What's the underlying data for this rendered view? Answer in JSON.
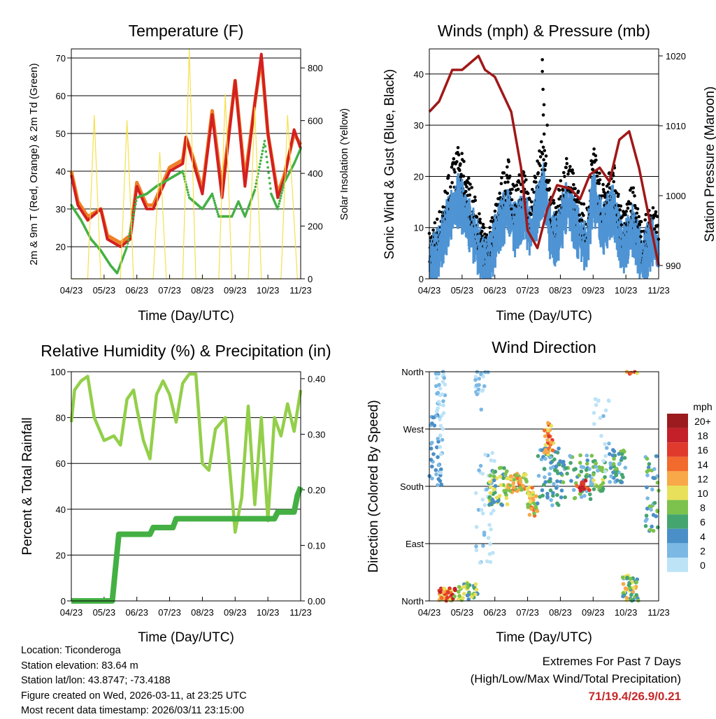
{
  "chart_data": [
    {
      "type": "line",
      "title": "Temperature (F)",
      "xlabel": "Time (Day/UTC)",
      "ylabel": "2m & 9m T (Red, Orange) & 2m Td (Green)",
      "ylabel_right": "Solar Insolation (Yellow)",
      "xticks": [
        "04/23",
        "05/23",
        "06/23",
        "07/23",
        "08/23",
        "09/23",
        "10/23",
        "11/23"
      ],
      "xlim": [
        0,
        7
      ],
      "ylim": [
        11.5,
        72.4
      ],
      "yticks": [
        20,
        30,
        40,
        50,
        60,
        70
      ],
      "ylim_right": [
        0,
        872
      ],
      "yticks_right": [
        0,
        200,
        400,
        600,
        800
      ],
      "series": [
        {
          "name": "9m T",
          "color": "#f07f24",
          "axis": "left",
          "points": [
            [
              0,
              40
            ],
            [
              0.2,
              32
            ],
            [
              0.5,
              28
            ],
            [
              0.9,
              30
            ],
            [
              1.1,
              23
            ],
            [
              1.5,
              21
            ],
            [
              1.8,
              23
            ],
            [
              2.0,
              37
            ],
            [
              2.3,
              31
            ],
            [
              2.5,
              31
            ],
            [
              3.0,
              41
            ],
            [
              3.4,
              43
            ],
            [
              3.5,
              49
            ],
            [
              3.7,
              44
            ],
            [
              4.0,
              35
            ],
            [
              4.3,
              56
            ],
            [
              4.6,
              35
            ],
            [
              5.0,
              64
            ],
            [
              5.3,
              38
            ],
            [
              5.6,
              58
            ],
            [
              5.8,
              70
            ],
            [
              6.0,
              50
            ],
            [
              6.3,
              34
            ],
            [
              6.5,
              39
            ],
            [
              6.8,
              50
            ],
            [
              7.0,
              47
            ]
          ]
        },
        {
          "name": "2m T",
          "color": "#d42020",
          "axis": "left",
          "points": [
            [
              0,
              39
            ],
            [
              0.2,
              31
            ],
            [
              0.5,
              27
            ],
            [
              0.9,
              30
            ],
            [
              1.1,
              22
            ],
            [
              1.5,
              20
            ],
            [
              1.8,
              22
            ],
            [
              2.0,
              36
            ],
            [
              2.3,
              30
            ],
            [
              2.5,
              30
            ],
            [
              3.0,
              40
            ],
            [
              3.4,
              42
            ],
            [
              3.5,
              49
            ],
            [
              3.7,
              43
            ],
            [
              4.0,
              34
            ],
            [
              4.3,
              55
            ],
            [
              4.6,
              33
            ],
            [
              5.0,
              64
            ],
            [
              5.3,
              36
            ],
            [
              5.6,
              58
            ],
            [
              5.8,
              71
            ],
            [
              6.0,
              50
            ],
            [
              6.3,
              33
            ],
            [
              6.5,
              38
            ],
            [
              6.8,
              51
            ],
            [
              7.0,
              46
            ]
          ]
        },
        {
          "name": "2m Td",
          "color": "#44b044",
          "axis": "left",
          "points": [
            [
              0,
              31
            ],
            [
              0.3,
              27
            ],
            [
              0.6,
              22
            ],
            [
              0.9,
              19
            ],
            [
              1.2,
              15
            ],
            [
              1.4,
              13
            ],
            [
              1.7,
              20
            ],
            [
              2.0,
              33
            ],
            [
              2.3,
              34
            ],
            [
              2.6,
              36
            ],
            [
              3.0,
              38
            ],
            [
              3.4,
              40
            ],
            [
              3.6,
              33
            ],
            [
              4.0,
              30
            ],
            [
              4.3,
              34
            ],
            [
              4.5,
              28
            ],
            [
              4.9,
              28
            ],
            [
              5.1,
              32
            ],
            [
              5.3,
              28
            ],
            [
              5.6,
              35
            ],
            [
              5.9,
              48
            ],
            [
              6.1,
              34
            ],
            [
              6.3,
              30
            ],
            [
              6.5,
              37
            ],
            [
              6.8,
              42
            ],
            [
              7.0,
              46
            ]
          ]
        },
        {
          "name": "Solar",
          "color": "#f5e04a",
          "axis": "right",
          "points": [
            [
              0,
              0
            ],
            [
              0.5,
              0
            ],
            [
              0.7,
              620
            ],
            [
              0.9,
              0
            ],
            [
              1.5,
              0
            ],
            [
              1.7,
              600
            ],
            [
              1.9,
              0
            ],
            [
              2.5,
              0
            ],
            [
              2.7,
              480
            ],
            [
              2.9,
              0
            ],
            [
              3.4,
              0
            ],
            [
              3.6,
              872
            ],
            [
              3.8,
              0
            ],
            [
              4.5,
              0
            ],
            [
              4.7,
              700
            ],
            [
              4.9,
              0
            ],
            [
              5.4,
              0
            ],
            [
              5.6,
              650
            ],
            [
              5.8,
              0
            ],
            [
              6.4,
              0
            ],
            [
              6.6,
              620
            ],
            [
              6.75,
              330
            ],
            [
              6.9,
              0
            ],
            [
              7,
              0
            ]
          ]
        }
      ]
    },
    {
      "type": "scatter",
      "title": "Winds (mph) & Pressure (mb)",
      "xlabel": "Time (Day/UTC)",
      "ylabel": "Sonic Wind & Gust (Blue, Black)",
      "ylabel_right": "Station Pressure (Maroon)",
      "xticks": [
        "04/23",
        "05/23",
        "06/23",
        "07/23",
        "08/23",
        "09/23",
        "10/23",
        "11/23"
      ],
      "xlim": [
        0,
        7
      ],
      "ylim": [
        0,
        44.9
      ],
      "yticks": [
        0,
        10,
        20,
        30,
        40
      ],
      "ylim_right": [
        988.1,
        1021
      ],
      "yticks_right": [
        990,
        1000,
        1010,
        1020
      ],
      "wind_keypoints": [
        [
          0,
          3
        ],
        [
          0.3,
          6
        ],
        [
          0.6,
          12
        ],
        [
          0.9,
          16
        ],
        [
          1.1,
          13
        ],
        [
          1.4,
          8
        ],
        [
          1.7,
          3
        ],
        [
          1.9,
          5
        ],
        [
          2.1,
          10
        ],
        [
          2.4,
          14
        ],
        [
          2.6,
          10
        ],
        [
          2.9,
          13
        ],
        [
          3.1,
          9
        ],
        [
          3.3,
          14
        ],
        [
          3.5,
          18
        ],
        [
          3.7,
          9
        ],
        [
          3.9,
          8
        ],
        [
          4.2,
          15
        ],
        [
          4.5,
          10
        ],
        [
          4.8,
          6
        ],
        [
          5.0,
          17
        ],
        [
          5.3,
          10
        ],
        [
          5.6,
          14
        ],
        [
          5.9,
          6
        ],
        [
          6.2,
          10
        ],
        [
          6.5,
          4
        ],
        [
          6.8,
          8
        ],
        [
          7.0,
          5
        ]
      ],
      "gust_max": 42.8,
      "pressure": [
        [
          0,
          1012
        ],
        [
          0.3,
          1013.5
        ],
        [
          0.7,
          1018
        ],
        [
          1.0,
          1018
        ],
        [
          1.5,
          1020
        ],
        [
          1.7,
          1018
        ],
        [
          2.0,
          1017
        ],
        [
          2.5,
          1012
        ],
        [
          2.8,
          1004
        ],
        [
          3.0,
          995
        ],
        [
          3.3,
          992.5
        ],
        [
          3.6,
          998
        ],
        [
          3.9,
          1001.5
        ],
        [
          4.3,
          1001
        ],
        [
          4.6,
          999.5
        ],
        [
          4.9,
          1003
        ],
        [
          5.2,
          1004
        ],
        [
          5.5,
          1002
        ],
        [
          5.8,
          1008
        ],
        [
          6.1,
          1009.2
        ],
        [
          6.4,
          1004
        ],
        [
          7.0,
          990
        ]
      ],
      "colors": {
        "wind": "#4f94d4",
        "gust": "#000000",
        "pressure": "#a01818"
      }
    },
    {
      "type": "line",
      "title": "Relative Humidity (%) & Precipitation (in)",
      "xlabel": "Time (Day/UTC)",
      "ylabel": "Percent & Total Rainfall",
      "xticks": [
        "04/23",
        "05/23",
        "06/23",
        "07/23",
        "08/23",
        "09/23",
        "10/23",
        "11/23"
      ],
      "xlim": [
        0,
        7
      ],
      "ylim": [
        0,
        100
      ],
      "yticks": [
        0,
        20,
        40,
        60,
        80,
        100
      ],
      "ylim_right": [
        0,
        0.4125
      ],
      "yticks_right": [
        "0.00",
        "0.10",
        "0.20",
        "0.30",
        "0.40"
      ],
      "series": [
        {
          "name": "RH",
          "color": "#93cf4a",
          "axis": "left",
          "points": [
            [
              0,
              78
            ],
            [
              0.1,
              92
            ],
            [
              0.3,
              96
            ],
            [
              0.5,
              98
            ],
            [
              0.7,
              80
            ],
            [
              1.0,
              70
            ],
            [
              1.3,
              72
            ],
            [
              1.5,
              68
            ],
            [
              1.7,
              88
            ],
            [
              1.9,
              92
            ],
            [
              2.0,
              84
            ],
            [
              2.2,
              70
            ],
            [
              2.4,
              62
            ],
            [
              2.6,
              90
            ],
            [
              2.8,
              96
            ],
            [
              3.0,
              90
            ],
            [
              3.2,
              78
            ],
            [
              3.4,
              95
            ],
            [
              3.6,
              99
            ],
            [
              3.8,
              99
            ],
            [
              3.9,
              80
            ],
            [
              4.0,
              60
            ],
            [
              4.2,
              57
            ],
            [
              4.4,
              75
            ],
            [
              4.7,
              80
            ],
            [
              5.0,
              30
            ],
            [
              5.2,
              45
            ],
            [
              5.4,
              85
            ],
            [
              5.6,
              42
            ],
            [
              5.8,
              80
            ],
            [
              6.0,
              35
            ],
            [
              6.2,
              80
            ],
            [
              6.4,
              72
            ],
            [
              6.6,
              86
            ],
            [
              6.8,
              74
            ],
            [
              7.0,
              92
            ]
          ]
        },
        {
          "name": "Precip",
          "color": "#44b044",
          "axis": "right",
          "points": [
            [
              0,
              0
            ],
            [
              1.25,
              0
            ],
            [
              1.45,
              0.12
            ],
            [
              2.4,
              0.12
            ],
            [
              2.5,
              0.132
            ],
            [
              3.1,
              0.132
            ],
            [
              3.2,
              0.148
            ],
            [
              6.2,
              0.148
            ],
            [
              6.3,
              0.16
            ],
            [
              6.8,
              0.16
            ],
            [
              6.9,
              0.19
            ],
            [
              7,
              0.205
            ]
          ]
        }
      ]
    },
    {
      "type": "scatter",
      "title": "Wind Direction",
      "xlabel": "Time (Day/UTC)",
      "ylabel": "Direction (Colored By Speed)",
      "xticks": [
        "04/23",
        "05/23",
        "06/23",
        "07/23",
        "08/23",
        "09/23",
        "10/23",
        "11/23"
      ],
      "xlim": [
        0,
        7
      ],
      "yticks": [
        "North",
        "East",
        "South",
        "West",
        "North"
      ],
      "ylim": [
        0,
        360
      ],
      "clusters": [
        [
          0,
          0.4,
          180,
          300,
          0,
          6,
          40
        ],
        [
          0.2,
          0.5,
          270,
          360,
          0,
          4,
          30
        ],
        [
          0.3,
          0.8,
          0,
          20,
          8,
          20,
          60
        ],
        [
          0.8,
          1.5,
          0,
          30,
          4,
          12,
          40
        ],
        [
          1.4,
          1.8,
          300,
          360,
          0,
          4,
          20
        ],
        [
          1.4,
          2.0,
          60,
          240,
          0,
          3,
          40
        ],
        [
          1.8,
          2.4,
          150,
          210,
          4,
          12,
          60
        ],
        [
          2.4,
          3.0,
          170,
          200,
          8,
          16,
          50
        ],
        [
          3.0,
          3.3,
          130,
          180,
          8,
          16,
          30
        ],
        [
          3.3,
          4.0,
          150,
          240,
          2,
          8,
          60
        ],
        [
          3.5,
          3.8,
          230,
          280,
          10,
          18,
          30
        ],
        [
          4.0,
          5.0,
          160,
          230,
          2,
          10,
          60
        ],
        [
          4.5,
          4.9,
          170,
          190,
          14,
          20,
          15
        ],
        [
          5.0,
          5.4,
          170,
          220,
          6,
          12,
          30
        ],
        [
          5.0,
          5.5,
          200,
          320,
          0,
          3,
          20
        ],
        [
          5.5,
          6.0,
          180,
          240,
          2,
          10,
          40
        ],
        [
          5.9,
          6.4,
          0,
          40,
          4,
          14,
          50
        ],
        [
          6.0,
          6.4,
          355,
          360,
          10,
          20,
          5
        ],
        [
          6.6,
          7,
          110,
          230,
          2,
          10,
          40
        ]
      ],
      "legend": {
        "title": "mph",
        "placement": "right",
        "labels": [
          "20+",
          "18",
          "16",
          "14",
          "12",
          "10",
          "8",
          "6",
          "4",
          "2",
          "0"
        ],
        "colors": [
          "#9b1b1e",
          "#c3202a",
          "#e03a2c",
          "#f26a2c",
          "#f8a848",
          "#e8e05a",
          "#7cc24c",
          "#45a56e",
          "#4a8fc8",
          "#7bb8e4",
          "#bde3f7"
        ]
      }
    }
  ],
  "info": {
    "location": "Location: Ticonderoga",
    "elevation": "Station elevation: 83.64 m",
    "latlon": "Station lat/lon: 43.8747; -73.4188",
    "created": "Figure created on Wed, 2026-03-11, at 23:25 UTC",
    "recent": "Most recent data timestamp: 2026/03/11 23:15:00"
  },
  "extremes": {
    "title": "Extremes For Past 7 Days",
    "subtitle": "(High/Low/Max Wind/Total Precipitation)",
    "values": "71/19.4/26.9/0.21"
  }
}
